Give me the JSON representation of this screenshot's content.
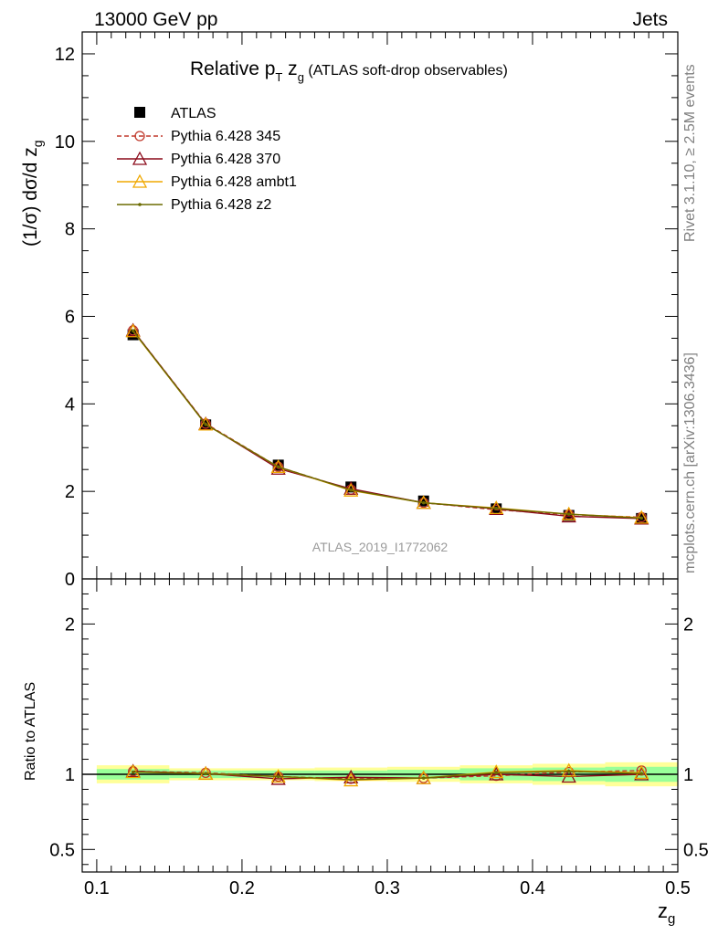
{
  "header": {
    "left": "13000 GeV pp",
    "right": "Jets"
  },
  "side_labels": {
    "rivet": "Rivet 3.1.10, ≥ 2.5M events",
    "mcplots": "mcplots.cern.ch [arXiv:1306.3436]"
  },
  "watermark": "ATLAS_2019_I1772062",
  "chart_data": {
    "type": "line",
    "title": {
      "prefix": "Relative p",
      "sub1": "T",
      "mid": " z",
      "sub2": "g",
      "suffix": " (ATLAS soft-drop observables)"
    },
    "xlabel": {
      "main": "z",
      "sub": "g"
    },
    "ylabel": {
      "main": "(1/σ) dσ/d z",
      "sub": "g"
    },
    "ratio_ylabel": "Ratio to ATLAS",
    "xlim": [
      0.09,
      0.5
    ],
    "ylim": [
      0,
      12.5
    ],
    "ratio_ylim": [
      0.35,
      2.3
    ],
    "x_ticks": [
      {
        "v": 0.1,
        "label": "0.1"
      },
      {
        "v": 0.2,
        "label": "0.2"
      },
      {
        "v": 0.3,
        "label": "0.3"
      },
      {
        "v": 0.4,
        "label": "0.4"
      },
      {
        "v": 0.5,
        "label": "0.5"
      }
    ],
    "y_ticks": [
      {
        "v": 0,
        "label": "0"
      },
      {
        "v": 2,
        "label": "2"
      },
      {
        "v": 4,
        "label": "4"
      },
      {
        "v": 6,
        "label": "6"
      },
      {
        "v": 8,
        "label": "8"
      },
      {
        "v": 10,
        "label": "10"
      },
      {
        "v": 12,
        "label": "12"
      }
    ],
    "ratio_ticks": [
      {
        "v": 0.5,
        "label": "0.5"
      },
      {
        "v": 1,
        "label": "1"
      },
      {
        "v": 2,
        "label": "2"
      }
    ],
    "x": [
      0.125,
      0.175,
      0.225,
      0.275,
      0.325,
      0.375,
      0.425,
      0.475
    ],
    "x_edges": [
      0.1,
      0.15,
      0.2,
      0.25,
      0.3,
      0.35,
      0.4,
      0.45,
      0.5
    ],
    "data": {
      "name": "ATLAS",
      "values": [
        5.58,
        3.52,
        2.6,
        2.1,
        1.78,
        1.6,
        1.45,
        1.38
      ],
      "band_green": [
        0.035,
        0.025,
        0.025,
        0.025,
        0.03,
        0.04,
        0.045,
        0.05
      ],
      "band_yellow": [
        0.06,
        0.04,
        0.04,
        0.045,
        0.05,
        0.06,
        0.07,
        0.08
      ]
    },
    "series": [
      {
        "name": "Pythia 6.428 345",
        "color": "#c0392b",
        "marker": "circle",
        "dash": "5,3",
        "values": [
          5.68,
          3.55,
          2.56,
          2.04,
          1.74,
          1.58,
          1.47,
          1.41
        ],
        "ratio": [
          1.02,
          1.01,
          0.985,
          0.97,
          0.975,
          0.99,
          1.015,
          1.025
        ]
      },
      {
        "name": "Pythia 6.428 370",
        "color": "#8b0a1a",
        "marker": "triangle",
        "dash": "",
        "values": [
          5.68,
          3.54,
          2.52,
          2.06,
          1.74,
          1.6,
          1.43,
          1.38
        ],
        "ratio": [
          1.02,
          1.005,
          0.97,
          0.98,
          0.975,
          1.0,
          0.985,
          1.0
        ]
      },
      {
        "name": "Pythia 6.428 ambt1",
        "color": "#f0a800",
        "marker": "triangle",
        "dash": "",
        "values": [
          5.66,
          3.53,
          2.56,
          2.02,
          1.74,
          1.62,
          1.48,
          1.4
        ],
        "ratio": [
          1.015,
          1.005,
          0.985,
          0.96,
          0.975,
          1.015,
          1.025,
          1.01
        ]
      },
      {
        "name": "Pythia 6.428 z2",
        "color": "#6b6b00",
        "marker": "dot",
        "dash": "",
        "values": [
          5.67,
          3.53,
          2.56,
          2.03,
          1.74,
          1.61,
          1.48,
          1.39
        ],
        "ratio": [
          1.015,
          1.005,
          0.985,
          0.965,
          0.975,
          1.01,
          1.02,
          1.005
        ]
      }
    ]
  }
}
